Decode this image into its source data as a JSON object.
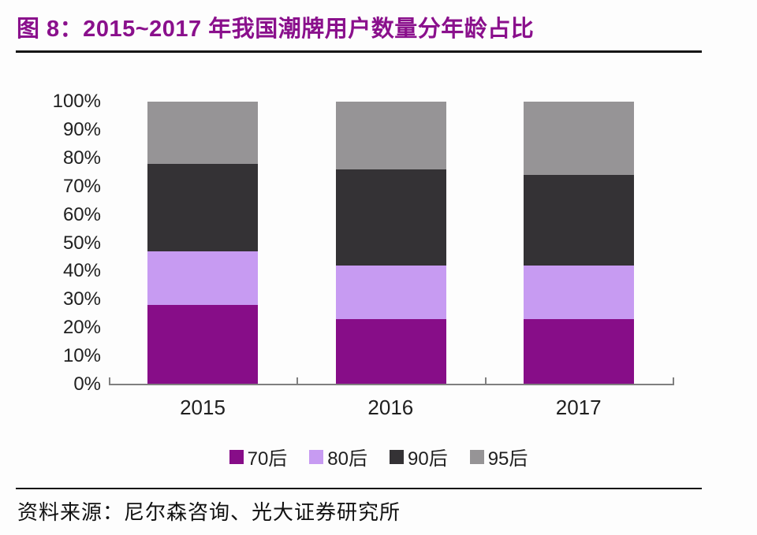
{
  "page": {
    "title": "图 8：2015~2017 年我国潮牌用户数量分年龄占比",
    "title_color": "#8a108c",
    "source": "资料来源：尼尔森咨询、光大证券研究所"
  },
  "chart_data": {
    "type": "bar",
    "stacked": true,
    "title": "2015~2017 年我国潮牌用户数量分年龄占比",
    "categories": [
      "2015",
      "2016",
      "2017"
    ],
    "series": [
      {
        "name": "70后",
        "color": "#870d88",
        "values": [
          28,
          23,
          23
        ]
      },
      {
        "name": "80后",
        "color": "#c79bf2",
        "values": [
          19,
          19,
          19
        ]
      },
      {
        "name": "90后",
        "color": "#343235",
        "values": [
          31,
          34,
          32
        ]
      },
      {
        "name": "95后",
        "color": "#969496",
        "values": [
          22,
          24,
          26
        ]
      }
    ],
    "xlabel": "",
    "ylabel": "",
    "ylim": [
      0,
      100
    ],
    "y_tick_labels": [
      "0%",
      "10%",
      "20%",
      "30%",
      "40%",
      "50%",
      "60%",
      "70%",
      "80%",
      "90%",
      "100%"
    ],
    "unit": "percent",
    "grid": false,
    "legend_position": "bottom",
    "axis_color": "#7f7f7f"
  }
}
